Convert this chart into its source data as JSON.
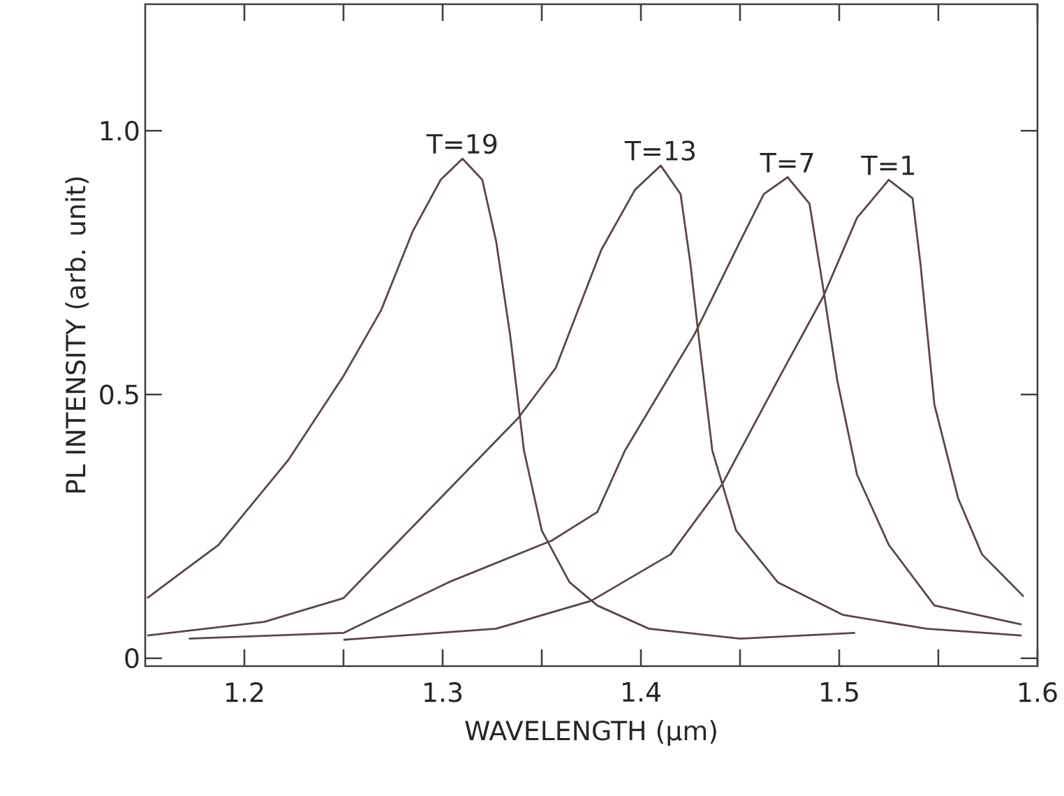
{
  "chart_data": {
    "type": "line",
    "xlabel": "WAVELENGTH (μm)",
    "ylabel": "PL INTENSITY (arb. unit)",
    "xlim": [
      1.15,
      1.6
    ],
    "ylim": [
      -0.015,
      1.24
    ],
    "xticks": [
      {
        "value": 1.2,
        "label": "1.2"
      },
      {
        "value": 1.25,
        "label": null
      },
      {
        "value": 1.3,
        "label": "1.3"
      },
      {
        "value": 1.35,
        "label": null
      },
      {
        "value": 1.4,
        "label": "1.4"
      },
      {
        "value": 1.45,
        "label": null
      },
      {
        "value": 1.5,
        "label": "1.5"
      },
      {
        "value": 1.55,
        "label": null
      },
      {
        "value": 1.6,
        "label": "1.6"
      }
    ],
    "yticks": [
      0,
      0.5,
      {
        "value": 1,
        "label": "1.0"
      }
    ],
    "grid": false,
    "legend": false,
    "marker": "none",
    "line_style": "solid",
    "series": [
      {
        "name": "T=19",
        "color": "#5a4646",
        "x": [
          1.151,
          1.187,
          1.222,
          1.25,
          1.269,
          1.285,
          1.299,
          1.31,
          1.32,
          1.327,
          1.334,
          1.341,
          1.35,
          1.364,
          1.378,
          1.404,
          1.45,
          1.508
        ],
        "values": [
          0.114,
          0.215,
          0.375,
          0.535,
          0.66,
          0.81,
          0.907,
          0.947,
          0.907,
          0.79,
          0.614,
          0.394,
          0.242,
          0.144,
          0.1,
          0.056,
          0.037,
          0.048
        ]
      },
      {
        "name": "T=13",
        "color": "#5a4646",
        "x": [
          1.151,
          1.21,
          1.25,
          1.292,
          1.338,
          1.357,
          1.38,
          1.397,
          1.41,
          1.42,
          1.425,
          1.429,
          1.436,
          1.448,
          1.469,
          1.502,
          1.544,
          1.592
        ],
        "values": [
          0.043,
          0.069,
          0.114,
          0.277,
          0.455,
          0.55,
          0.774,
          0.888,
          0.934,
          0.88,
          0.747,
          0.614,
          0.394,
          0.242,
          0.144,
          0.082,
          0.056,
          0.043
        ]
      },
      {
        "name": "T=7",
        "color": "#5a4646",
        "x": [
          1.172,
          1.25,
          1.303,
          1.355,
          1.378,
          1.392,
          1.427,
          1.45,
          1.462,
          1.474,
          1.485,
          1.492,
          1.499,
          1.509,
          1.525,
          1.548,
          1.592
        ],
        "values": [
          0.037,
          0.048,
          0.144,
          0.223,
          0.277,
          0.394,
          0.614,
          0.79,
          0.88,
          0.912,
          0.862,
          0.7,
          0.527,
          0.348,
          0.215,
          0.1,
          0.064
        ]
      },
      {
        "name": "T=1",
        "color": "#5a4646",
        "x": [
          1.25,
          1.327,
          1.375,
          1.415,
          1.441,
          1.469,
          1.492,
          1.509,
          1.525,
          1.537,
          1.541,
          1.548,
          1.56,
          1.572,
          1.593
        ],
        "values": [
          0.035,
          0.056,
          0.109,
          0.197,
          0.33,
          0.527,
          0.686,
          0.835,
          0.907,
          0.872,
          0.747,
          0.481,
          0.303,
          0.197,
          0.117
        ]
      }
    ]
  }
}
